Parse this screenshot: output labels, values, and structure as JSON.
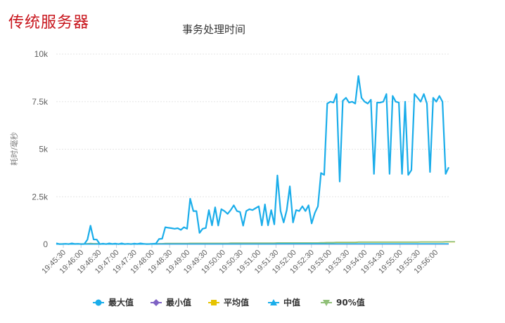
{
  "page_label": "传统服务器",
  "chart_data": {
    "type": "line",
    "title": "事务处理时间",
    "ylabel": "耗时/毫秒",
    "xlabel": "",
    "ylim": [
      0,
      10000
    ],
    "yticks": [
      0,
      2500,
      5000,
      7500,
      10000
    ],
    "ytick_labels": [
      "0",
      "2.5k",
      "5k",
      "7.5k",
      "10k"
    ],
    "xtick_labels": [
      "19:45:30",
      "19:46:00",
      "19:46:30",
      "19:47:00",
      "19:47:30",
      "19:48:00",
      "19:48:30",
      "19:49:00",
      "19:49:30",
      "19:50:00",
      "19:50:30",
      "19:51:00",
      "19:51:30",
      "19:52:00",
      "19:52:30",
      "19:53:00",
      "19:53:30",
      "19:54:00",
      "19:54:30",
      "19:55:00",
      "19:55:30",
      "19:56:00"
    ],
    "legend_position": "bottom",
    "grid": true,
    "series": [
      {
        "name": "最大值",
        "color": "#1aadea",
        "marker": "circle",
        "values": [
          60,
          10,
          20,
          30,
          10,
          50,
          20,
          30,
          10,
          20,
          250,
          980,
          260,
          250,
          10,
          40,
          10,
          50,
          20,
          40,
          10,
          50,
          10,
          30,
          10,
          40,
          20,
          50,
          30,
          10,
          20,
          30,
          40,
          280,
          300,
          900,
          870,
          850,
          820,
          850,
          760,
          900,
          820,
          2400,
          1750,
          1750,
          600,
          820,
          860,
          1800,
          1000,
          1950,
          990,
          1850,
          1750,
          1600,
          1800,
          2050,
          1750,
          1700,
          980,
          1750,
          1850,
          1800,
          1900,
          2000,
          1000,
          2100,
          1000,
          1800,
          1050,
          3620,
          1750,
          1150,
          1800,
          3050,
          1150,
          1800,
          1750,
          2000,
          1750,
          2050,
          1100,
          1650,
          2000,
          3750,
          3650,
          7400,
          7500,
          7450,
          7900,
          3300,
          7550,
          7700,
          7450,
          7500,
          7400,
          8850,
          7700,
          7500,
          7400,
          7600,
          3700,
          7450,
          7450,
          7500,
          7900,
          3700,
          7800,
          7500,
          7450,
          3700,
          7500,
          3650,
          3900,
          7900,
          7700,
          7500,
          7900,
          7400,
          3800,
          7700,
          7500,
          7800,
          7500,
          3700,
          4050
        ]
      },
      {
        "name": "最小值",
        "color": "#7e62c4",
        "marker": "diamond",
        "values": [
          10,
          10,
          10,
          10,
          10,
          10,
          10,
          10,
          10,
          10,
          10,
          10,
          10,
          10,
          10,
          10,
          10,
          10,
          10,
          10,
          10,
          10,
          10,
          10,
          10,
          10,
          10,
          10,
          10,
          10,
          10,
          10,
          10,
          20,
          20,
          20,
          20,
          20,
          20,
          20,
          20,
          20,
          20,
          20,
          20,
          20,
          20,
          20,
          20,
          20,
          20,
          20,
          20,
          20,
          20,
          20,
          20,
          20,
          20,
          20,
          20,
          20,
          20,
          20,
          20,
          20,
          20,
          20,
          20,
          20,
          20,
          20,
          20,
          20,
          20,
          20,
          20,
          20,
          20,
          20,
          20,
          20,
          20,
          20,
          20,
          20,
          20,
          20,
          20,
          20,
          20,
          20,
          20,
          20,
          20,
          20,
          20,
          20,
          20,
          20,
          20,
          20,
          20,
          20,
          20,
          20,
          20,
          20,
          20,
          20,
          20,
          20,
          20,
          20,
          20,
          20,
          20,
          20,
          20,
          20,
          20,
          20,
          20,
          20,
          20,
          20,
          20
        ]
      },
      {
        "name": "平均值",
        "color": "#e6c300",
        "marker": "square",
        "values": [
          20,
          20,
          20,
          20,
          20,
          20,
          20,
          20,
          20,
          20,
          30,
          40,
          30,
          30,
          20,
          20,
          20,
          20,
          20,
          20,
          20,
          20,
          20,
          20,
          20,
          20,
          20,
          20,
          20,
          20,
          20,
          20,
          20,
          30,
          30,
          40,
          40,
          40,
          40,
          40,
          40,
          40,
          40,
          50,
          50,
          50,
          50,
          50,
          50,
          50,
          50,
          50,
          50,
          50,
          50,
          50,
          50,
          60,
          60,
          60,
          60,
          60,
          60,
          60,
          60,
          60,
          60,
          60,
          60,
          60,
          60,
          70,
          70,
          70,
          70,
          70,
          70,
          70,
          70,
          70,
          70,
          70,
          70,
          70,
          70,
          80,
          80,
          90,
          90,
          90,
          100,
          100,
          100,
          100,
          100,
          100,
          100,
          110,
          110,
          110,
          110,
          110,
          110,
          110,
          110,
          110,
          110,
          110,
          110,
          110,
          110,
          110,
          110,
          110,
          110,
          110,
          110,
          120,
          120,
          120,
          120,
          120,
          120,
          120,
          120,
          130,
          130,
          130,
          130
        ]
      },
      {
        "name": "中值",
        "color": "#1aadea",
        "marker": "triangle",
        "values": [
          10,
          10,
          10,
          10,
          10,
          10,
          10,
          10,
          10,
          10,
          10,
          20,
          10,
          10,
          10,
          10,
          10,
          10,
          10,
          10,
          10,
          10,
          10,
          10,
          10,
          10,
          10,
          10,
          10,
          10,
          10,
          10,
          10,
          20,
          20,
          20,
          20,
          20,
          20,
          20,
          20,
          20,
          20,
          20,
          20,
          20,
          20,
          20,
          20,
          20,
          20,
          20,
          20,
          20,
          20,
          20,
          20,
          20,
          20,
          20,
          20,
          20,
          20,
          20,
          20,
          20,
          20,
          20,
          20,
          20,
          20,
          30,
          30,
          30,
          30,
          30,
          30,
          30,
          30,
          30,
          30,
          30,
          30,
          30,
          30,
          30,
          30,
          30,
          30,
          30,
          30,
          30,
          30,
          30,
          30,
          30,
          30,
          30,
          30,
          30,
          30,
          30,
          30,
          30,
          30,
          30,
          30,
          30,
          30,
          30,
          30,
          30,
          30,
          30,
          30,
          30,
          30,
          30,
          30,
          30,
          30,
          30,
          30,
          30,
          30,
          30,
          30
        ]
      },
      {
        "name": "90%值",
        "color": "#90c078",
        "marker": "triangle-down",
        "values": [
          30,
          30,
          30,
          30,
          30,
          30,
          30,
          30,
          30,
          30,
          40,
          50,
          40,
          40,
          30,
          30,
          30,
          30,
          30,
          30,
          30,
          30,
          30,
          30,
          30,
          30,
          30,
          30,
          30,
          30,
          30,
          30,
          30,
          40,
          40,
          50,
          50,
          50,
          50,
          50,
          50,
          50,
          50,
          60,
          60,
          60,
          60,
          60,
          60,
          60,
          60,
          60,
          60,
          60,
          60,
          60,
          70,
          70,
          70,
          70,
          70,
          70,
          70,
          70,
          70,
          70,
          70,
          70,
          70,
          70,
          70,
          80,
          80,
          80,
          80,
          80,
          80,
          80,
          80,
          80,
          80,
          80,
          80,
          80,
          80,
          90,
          90,
          100,
          100,
          100,
          110,
          110,
          110,
          110,
          110,
          110,
          110,
          120,
          120,
          120,
          120,
          120,
          120,
          120,
          120,
          120,
          120,
          120,
          120,
          120,
          120,
          120,
          120,
          120,
          120,
          120,
          120,
          130,
          130,
          130,
          130,
          130,
          130,
          130,
          130,
          140,
          140,
          140,
          140
        ]
      }
    ]
  }
}
